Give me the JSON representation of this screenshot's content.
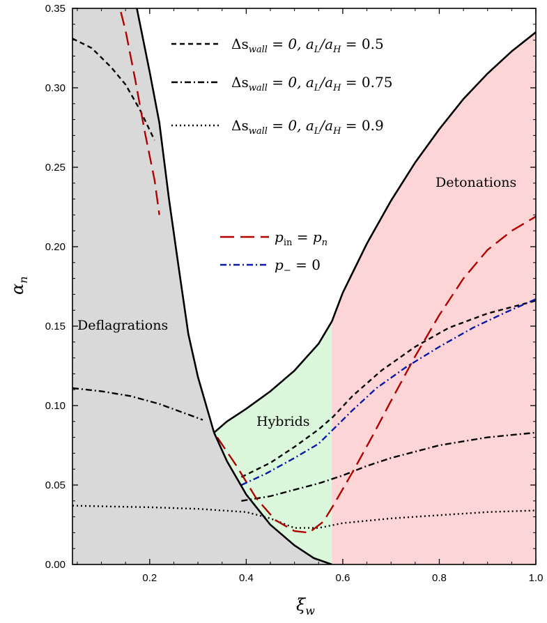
{
  "chart_data": {
    "type": "line",
    "xlabel": "ξw",
    "ylabel": "αn",
    "xlim": [
      0.04,
      1.0
    ],
    "ylim": [
      0.0,
      0.35
    ],
    "x_ticks": [
      0.2,
      0.4,
      0.6,
      0.8,
      1.0
    ],
    "x_tick_labels": [
      "0.2",
      "0.4",
      "0.6",
      "0.8",
      "1.0"
    ],
    "y_ticks": [
      0.0,
      0.05,
      0.1,
      0.15,
      0.2,
      0.25,
      0.3,
      0.35
    ],
    "y_tick_labels": [
      "0.00",
      "0.05",
      "0.10",
      "0.15",
      "0.20",
      "0.25",
      "0.30",
      "0.35"
    ],
    "grid": false,
    "regions": [
      {
        "name": "Deflagrations",
        "color": "#d9d9d9"
      },
      {
        "name": "Hybrids",
        "color": "#dbf8dc"
      },
      {
        "name": "Detonations",
        "color": "#fdd5d7"
      }
    ],
    "boundaries": [
      {
        "name": "deflagration upper bound",
        "points": [
          [
            0.13,
            0.4
          ],
          [
            0.15,
            0.38
          ],
          [
            0.17,
            0.355
          ],
          [
            0.2,
            0.31
          ],
          [
            0.22,
            0.278
          ],
          [
            0.24,
            0.23
          ],
          [
            0.26,
            0.187
          ],
          [
            0.28,
            0.145
          ],
          [
            0.3,
            0.118
          ],
          [
            0.3333,
            0.083
          ]
        ]
      },
      {
        "name": "hybrid upper bound",
        "points": [
          [
            0.3333,
            0.083
          ],
          [
            0.36,
            0.09
          ],
          [
            0.4,
            0.098
          ],
          [
            0.45,
            0.109
          ],
          [
            0.5,
            0.122
          ],
          [
            0.55,
            0.139
          ],
          [
            0.5774,
            0.153
          ]
        ]
      },
      {
        "name": "detonation lower bound",
        "points": [
          [
            0.5774,
            0.153
          ],
          [
            0.6,
            0.171
          ],
          [
            0.65,
            0.202
          ],
          [
            0.7,
            0.229
          ],
          [
            0.75,
            0.253
          ],
          [
            0.8,
            0.274
          ],
          [
            0.85,
            0.293
          ],
          [
            0.9,
            0.309
          ],
          [
            0.95,
            0.323
          ],
          [
            1.0,
            0.335
          ]
        ]
      },
      {
        "name": "lower boundary",
        "points": [
          [
            0.3333,
            0.083
          ],
          [
            0.36,
            0.065
          ],
          [
            0.4,
            0.044
          ],
          [
            0.45,
            0.025
          ],
          [
            0.5,
            0.012
          ],
          [
            0.54,
            0.004
          ],
          [
            0.5774,
            0.0
          ]
        ]
      }
    ],
    "series": [
      {
        "name": "Δs_wall = 0, a_L/a_H = 0.5",
        "color": "#000000",
        "dash": "dashed",
        "segments": [
          [
            [
              0.04,
              0.331
            ],
            [
              0.08,
              0.325
            ],
            [
              0.12,
              0.313
            ],
            [
              0.15,
              0.302
            ],
            [
              0.18,
              0.286
            ],
            [
              0.21,
              0.267
            ]
          ],
          [
            [
              0.39,
              0.055
            ],
            [
              0.45,
              0.064
            ],
            [
              0.5,
              0.074
            ],
            [
              0.55,
              0.085
            ],
            [
              0.58,
              0.093
            ],
            [
              0.62,
              0.106
            ],
            [
              0.68,
              0.122
            ],
            [
              0.75,
              0.137
            ],
            [
              0.82,
              0.149
            ],
            [
              0.9,
              0.158
            ],
            [
              1.0,
              0.166
            ]
          ]
        ]
      },
      {
        "name": "Δs_wall = 0, a_L/a_H = 0.75",
        "color": "#000000",
        "dash": "dashdot",
        "segments": [
          [
            [
              0.04,
              0.111
            ],
            [
              0.1,
              0.109
            ],
            [
              0.16,
              0.106
            ],
            [
              0.22,
              0.101
            ],
            [
              0.27,
              0.0955
            ],
            [
              0.31,
              0.091
            ]
          ],
          [
            [
              0.39,
              0.04
            ],
            [
              0.45,
              0.043
            ],
            [
              0.5,
              0.047
            ],
            [
              0.55,
              0.051
            ],
            [
              0.6,
              0.056
            ],
            [
              0.65,
              0.062
            ],
            [
              0.7,
              0.067
            ],
            [
              0.8,
              0.075
            ],
            [
              0.9,
              0.08
            ],
            [
              1.0,
              0.083
            ]
          ]
        ]
      },
      {
        "name": "Δs_wall = 0, a_L/a_H = 0.9",
        "color": "#000000",
        "dash": "dotted",
        "segments": [
          [
            [
              0.04,
              0.037
            ],
            [
              0.12,
              0.0365
            ],
            [
              0.2,
              0.036
            ],
            [
              0.3,
              0.035
            ],
            [
              0.4,
              0.033
            ],
            [
              0.45,
              0.029
            ],
            [
              0.5,
              0.023
            ],
            [
              0.55,
              0.023
            ],
            [
              0.6,
              0.026
            ],
            [
              0.7,
              0.029
            ],
            [
              0.8,
              0.031
            ],
            [
              0.9,
              0.033
            ],
            [
              1.0,
              0.034
            ]
          ]
        ]
      },
      {
        "name": "p_in = p_n",
        "color": "#b00000",
        "dash": "longdash",
        "segments": [
          [
            [
              0.13,
              0.36
            ],
            [
              0.15,
              0.336
            ],
            [
              0.17,
              0.305
            ],
            [
              0.19,
              0.272
            ],
            [
              0.21,
              0.242
            ],
            [
              0.22,
              0.22
            ]
          ],
          [
            [
              0.34,
              0.08
            ],
            [
              0.38,
              0.062
            ],
            [
              0.42,
              0.042
            ],
            [
              0.46,
              0.028
            ],
            [
              0.5,
              0.021
            ],
            [
              0.53,
              0.02
            ],
            [
              0.56,
              0.027
            ],
            [
              0.58,
              0.037
            ],
            [
              0.62,
              0.058
            ],
            [
              0.66,
              0.08
            ],
            [
              0.7,
              0.103
            ],
            [
              0.75,
              0.131
            ],
            [
              0.8,
              0.157
            ],
            [
              0.85,
              0.18
            ],
            [
              0.9,
              0.198
            ],
            [
              0.95,
              0.21
            ],
            [
              1.0,
              0.219
            ]
          ]
        ]
      },
      {
        "name": "p_− = 0",
        "color": "#0a1aa8",
        "dash": "dashdot",
        "segments": [
          [
            [
              0.39,
              0.05
            ],
            [
              0.44,
              0.057
            ],
            [
              0.5,
              0.067
            ],
            [
              0.55,
              0.076
            ],
            [
              0.58,
              0.085
            ],
            [
              0.62,
              0.097
            ],
            [
              0.67,
              0.111
            ],
            [
              0.73,
              0.124
            ],
            [
              0.8,
              0.137
            ],
            [
              0.87,
              0.149
            ],
            [
              0.94,
              0.159
            ],
            [
              1.0,
              0.167
            ]
          ]
        ]
      }
    ],
    "legend_upper": [
      {
        "text": "Δs",
        "sub": "wall",
        "tail": " = 0,    a",
        "sub2": "L",
        "mid": "/a",
        "sub3": "H",
        "end": " = 0.5"
      },
      {
        "text": "Δs",
        "sub": "wall",
        "tail": " = 0,    a",
        "sub2": "L",
        "mid": "/a",
        "sub3": "H",
        "end": " = 0.75"
      },
      {
        "text": "Δs",
        "sub": "wall",
        "tail": " = 0,    a",
        "sub2": "L",
        "mid": "/a",
        "sub3": "H",
        "end": " = 0.9"
      }
    ],
    "legend_lower": [
      {
        "a": "p",
        "sub": "in",
        "b": " = p",
        "sub2": "n"
      },
      {
        "a": "p",
        "sub": "−",
        "b": " = 0"
      }
    ]
  },
  "labels": {
    "deflagrations": "Deflagrations",
    "hybrids": "Hybrids",
    "detonations": "Detonations",
    "xlabel_main": "ξ",
    "xlabel_sub": "w",
    "ylabel_main": "α",
    "ylabel_sub": "n"
  }
}
